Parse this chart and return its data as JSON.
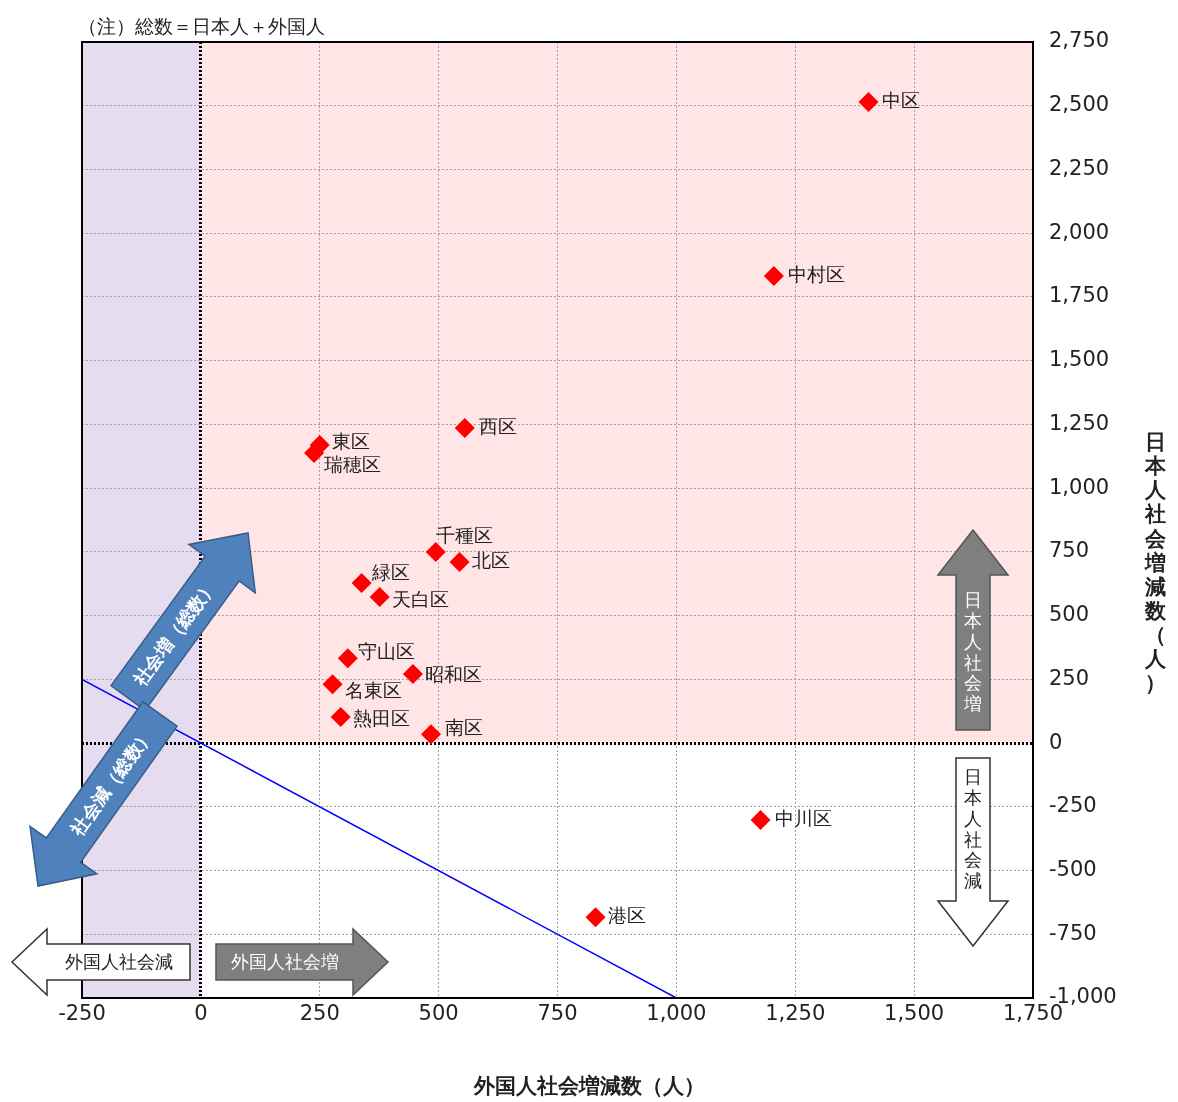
{
  "chart_data": {
    "type": "scatter",
    "xlabel": "外国人社会増減数（人）",
    "ylabel": "日本人社会増減数（人）",
    "xlim": [
      -250,
      1750
    ],
    "xticks": [
      -250,
      0,
      250,
      500,
      750,
      {
        "value": 1000,
        "label": "1,000"
      },
      {
        "value": 1250,
        "label": "1,250"
      },
      {
        "value": 1500,
        "label": "1,500"
      },
      {
        "value": 1750,
        "label": "1,750"
      }
    ],
    "ylim": [
      -1000,
      2750
    ],
    "yticks": [
      {
        "value": -1000,
        "label": "-1,000"
      },
      -750,
      -500,
      -250,
      0,
      250,
      500,
      750,
      {
        "value": 1000,
        "label": "1,000"
      },
      {
        "value": 1250,
        "label": "1,250"
      },
      {
        "value": 1500,
        "label": "1,500"
      },
      {
        "value": 1750,
        "label": "1,750"
      },
      {
        "value": 2000,
        "label": "2,000"
      },
      {
        "value": 2250,
        "label": "2,250"
      },
      {
        "value": 2500,
        "label": "2,500"
      },
      {
        "value": 2750,
        "label": "2,750"
      }
    ],
    "grid": true,
    "legend": false,
    "marker": "diamond",
    "series": [
      {
        "color": "#ff0000",
        "x": [
          1404,
          1205,
          555,
          250,
          238,
          494,
          544,
          338,
          376,
          309,
          446,
          277,
          294,
          484,
          1177,
          830
        ],
        "values": [
          2515,
          1832,
          1236,
          1169,
          1138,
          749,
          710,
          628,
          573,
          333,
          271,
          231,
          102,
          35,
          -302,
          -683
        ]
      },
      {
        "type": "line",
        "marker": "none",
        "color": "#0000ff",
        "x": [
          -250,
          1000
        ],
        "values": [
          250,
          -1000
        ]
      }
    ],
    "bands": [
      {
        "axis": "y",
        "from": 0,
        "to": 2750,
        "color": "#ffe5e5"
      },
      {
        "axis": "x",
        "from": -250,
        "to": 0,
        "color": "#e6dcf0"
      }
    ],
    "annotations": [
      "（注）総数＝日本人＋外国人",
      "社会増（総数）",
      "社会減（総数）",
      "日本人社会増",
      "日本人社会減",
      "外国人社会減",
      "外国人社会増",
      {
        "text": "中区",
        "x": 1404,
        "y": 2515
      },
      {
        "text": "中村区",
        "x": 1205,
        "y": 1832
      },
      {
        "text": "西区",
        "x": 555,
        "y": 1236
      },
      {
        "text": "東区",
        "x": 250,
        "y": 1169
      },
      {
        "text": "瑞穂区",
        "x": 238,
        "y": 1138
      },
      {
        "text": "千種区",
        "x": 494,
        "y": 749
      },
      {
        "text": "北区",
        "x": 544,
        "y": 710
      },
      {
        "text": "緑区",
        "x": 338,
        "y": 628
      },
      {
        "text": "天白区",
        "x": 376,
        "y": 573
      },
      {
        "text": "守山区",
        "x": 309,
        "y": 333
      },
      {
        "text": "昭和区",
        "x": 446,
        "y": 271
      },
      {
        "text": "名東区",
        "x": 277,
        "y": 231
      },
      {
        "text": "熱田区",
        "x": 294,
        "y": 102
      },
      {
        "text": "南区",
        "x": 484,
        "y": 35
      },
      {
        "text": "中川区",
        "x": 1177,
        "y": -302
      },
      {
        "text": "港区",
        "x": 830,
        "y": -683
      }
    ]
  }
}
